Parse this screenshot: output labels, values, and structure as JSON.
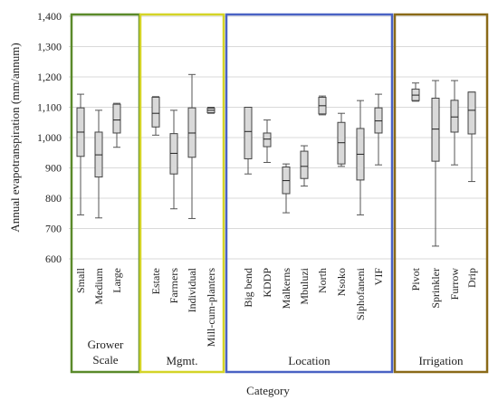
{
  "chart_data": {
    "type": "box",
    "ylabel": "Annual evapotranspiration (mm/annum)",
    "xlabel": "Category",
    "ylim": [
      600,
      1400
    ],
    "yticks": [
      600,
      700,
      800,
      900,
      "1,000",
      "1,100",
      "1,200",
      "1,300",
      "1,400"
    ],
    "y_tick_values": [
      600,
      700,
      800,
      900,
      1000,
      1100,
      1200,
      1300,
      1400
    ],
    "groups": [
      {
        "name": "Grower\nScale",
        "name_lines": [
          "Grower",
          "Scale"
        ],
        "frame_color": "#5a8a2a",
        "boxes": [
          {
            "label": "Small",
            "min": 745,
            "q1": 938,
            "median": 1018,
            "q3": 1098,
            "max": 1143
          },
          {
            "label": "Medium",
            "min": 735,
            "q1": 870,
            "median": 943,
            "q3": 1018,
            "max": 1090
          },
          {
            "label": "Large",
            "min": 968,
            "q1": 1015,
            "median": 1058,
            "q3": 1110,
            "max": 1113
          }
        ]
      },
      {
        "name": "Mgmt.",
        "name_lines": [
          "Mgmt."
        ],
        "frame_color": "#d4d427",
        "boxes": [
          {
            "label": "Estate",
            "min": 1008,
            "q1": 1035,
            "median": 1080,
            "q3": 1133,
            "max": 1135
          },
          {
            "label": "Farmers",
            "min": 765,
            "q1": 880,
            "median": 948,
            "q3": 1013,
            "max": 1090
          },
          {
            "label": "Individual",
            "min": 733,
            "q1": 935,
            "median": 1015,
            "q3": 1098,
            "max": 1208
          },
          {
            "label": "Mill-cum-planters",
            "min": 1080,
            "q1": 1082,
            "median": 1090,
            "q3": 1097,
            "max": 1100
          }
        ]
      },
      {
        "name": "Location",
        "name_lines": [
          "Location"
        ],
        "frame_color": "#4a62c4",
        "boxes": [
          {
            "label": "Big bend",
            "min": 880,
            "q1": 930,
            "median": 1020,
            "q3": 1100,
            "max": 1100
          },
          {
            "label": "KDDP",
            "min": 918,
            "q1": 970,
            "median": 995,
            "q3": 1015,
            "max": 1058
          },
          {
            "label": "Malkerns",
            "min": 752,
            "q1": 815,
            "median": 858,
            "q3": 903,
            "max": 913
          },
          {
            "label": "Mbuluzi",
            "min": 840,
            "q1": 865,
            "median": 905,
            "q3": 955,
            "max": 973
          },
          {
            "label": "North",
            "min": 1075,
            "q1": 1078,
            "median": 1105,
            "q3": 1133,
            "max": 1137
          },
          {
            "label": "Nsoko",
            "min": 905,
            "q1": 913,
            "median": 983,
            "q3": 1050,
            "max": 1080
          },
          {
            "label": "Siphofaneni",
            "min": 745,
            "q1": 860,
            "median": 945,
            "q3": 1030,
            "max": 1122
          },
          {
            "label": "VIF",
            "min": 910,
            "q1": 1015,
            "median": 1055,
            "q3": 1098,
            "max": 1143
          }
        ]
      },
      {
        "name": "Irrigation",
        "name_lines": [
          "Irrigation"
        ],
        "frame_color": "#8a6a18",
        "boxes": [
          {
            "label": "Pivot",
            "min": 1120,
            "q1": 1122,
            "median": 1140,
            "q3": 1160,
            "max": 1180
          },
          {
            "label": "Sprinkler",
            "min": 642,
            "q1": 922,
            "median": 1028,
            "q3": 1130,
            "max": 1188
          },
          {
            "label": "Furrow",
            "min": 910,
            "q1": 1018,
            "median": 1068,
            "q3": 1123,
            "max": 1188
          },
          {
            "label": "Drip",
            "min": 855,
            "q1": 1012,
            "median": 1090,
            "q3": 1150,
            "max": 1150
          }
        ]
      }
    ]
  }
}
